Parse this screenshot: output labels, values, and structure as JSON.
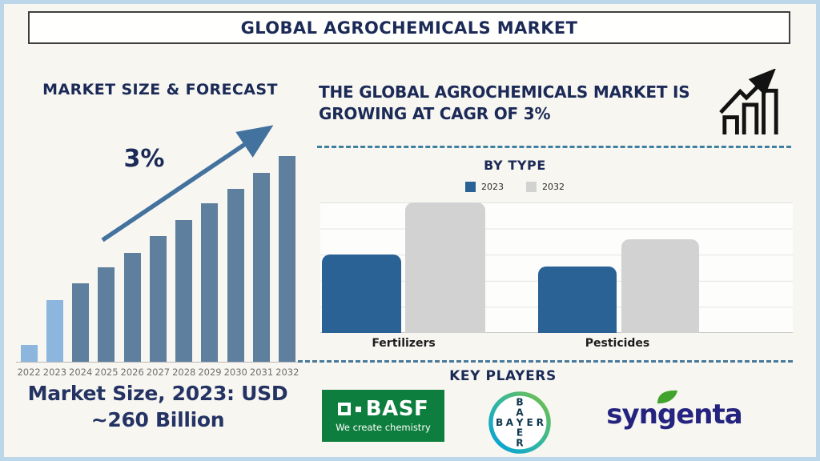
{
  "page": {
    "title": "GLOBAL AGROCHEMICALS MARKET",
    "colors": {
      "background": "#f7f6f1",
      "frame_border": "#bcd6ea",
      "heading_navy": "#1b2a56",
      "forecast_bar_default": "#5e7f9d",
      "forecast_bar_highlight": "#8cb6de",
      "trend_arrow": "#44729e",
      "series_2023_blue": "#2a6295",
      "series_2032_gray": "#d2d2d2",
      "dashed_divider": "#3e7fa2",
      "basf_green": "#0e7e3e",
      "bayer_letters": "#10384f",
      "syngenta_navy": "#24237f",
      "syngenta_leaf_green": "#3fa32c"
    }
  },
  "left_section": {
    "caption_line1": "Market Size, 2023: USD",
    "caption_line2": "~260 Billion"
  },
  "right_section": {
    "heading": "THE GLOBAL AGROCHEMICALS MARKET IS GROWING AT CAGR OF 3%",
    "key_players_heading": "KEY PLAYERS",
    "players": [
      {
        "name": "BASF",
        "wordmark": "BASF",
        "tagline": "We create chemistry"
      },
      {
        "name": "Bayer",
        "letters": "BAYER"
      },
      {
        "name": "Syngenta",
        "wordmark": "syngenta"
      }
    ]
  },
  "chart_data": [
    {
      "type": "bar",
      "title": "MARKET SIZE & FORECAST",
      "annotation": "3%",
      "categories": [
        "2022",
        "2023",
        "2024",
        "2025",
        "2026",
        "2027",
        "2028",
        "2029",
        "2030",
        "2031",
        "2032"
      ],
      "values_relative_pct": [
        8,
        30,
        38,
        46,
        53,
        61,
        69,
        77,
        84,
        92,
        100
      ],
      "highlight_indices": [
        0,
        1
      ],
      "bar_color_default": "#5e7f9d",
      "bar_color_highlight": "#8cb6de",
      "xlabel": "",
      "ylabel": "",
      "grid": false,
      "caption": "Market Size, 2023: USD ~260 Billion"
    },
    {
      "type": "bar",
      "title": "BY TYPE",
      "categories": [
        "Fertilizers",
        "Pesticides"
      ],
      "series": [
        {
          "name": "2023",
          "color": "#2a6295",
          "values_relative_pct": [
            60,
            51
          ]
        },
        {
          "name": "2032",
          "color": "#d2d2d2",
          "values_relative_pct": [
            100,
            72
          ]
        }
      ],
      "xlabel": "",
      "ylabel": "",
      "grid": true,
      "legend_position": "top"
    }
  ]
}
